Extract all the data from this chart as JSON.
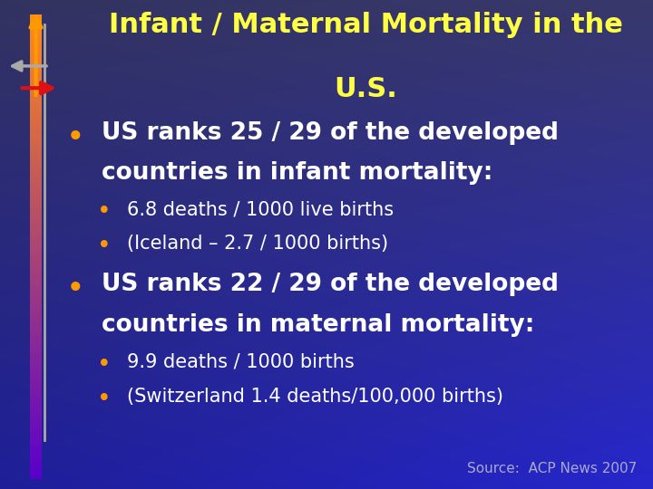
{
  "title_line1": "Infant / Maternal Mortality in the",
  "title_line2": "U.S.",
  "title_color": "#FFFF44",
  "bullet1_main_line1": "US ranks 25 / 29 of the developed",
  "bullet1_main_line2": "countries in infant mortality:",
  "bullet1_sub1": "6.8 deaths / 1000 live births",
  "bullet1_sub2": "(Iceland – 2.7 / 1000 births)",
  "bullet2_main_line1": "US ranks 22 / 29 of the developed",
  "bullet2_main_line2": "countries in maternal mortality:",
  "bullet2_sub1": "9.9 deaths / 1000 births",
  "bullet2_sub2": "(Switzerland 1.4 deaths/100,000 births)",
  "source_text": "Source:  ACP News 2007",
  "text_color": "#FFFFFF",
  "source_color": "#AAAACC",
  "bullet_dot_color": "#FF9900",
  "title_fontsize": 22,
  "main_bullet_fontsize": 19,
  "sub_bullet_fontsize": 15,
  "source_fontsize": 11,
  "bg_gradient_tl": [
    0.2,
    0.2,
    0.38
  ],
  "bg_gradient_tr": [
    0.22,
    0.22,
    0.42
  ],
  "bg_gradient_bl": [
    0.12,
    0.12,
    0.6
  ],
  "bg_gradient_br": [
    0.15,
    0.15,
    0.8
  ]
}
